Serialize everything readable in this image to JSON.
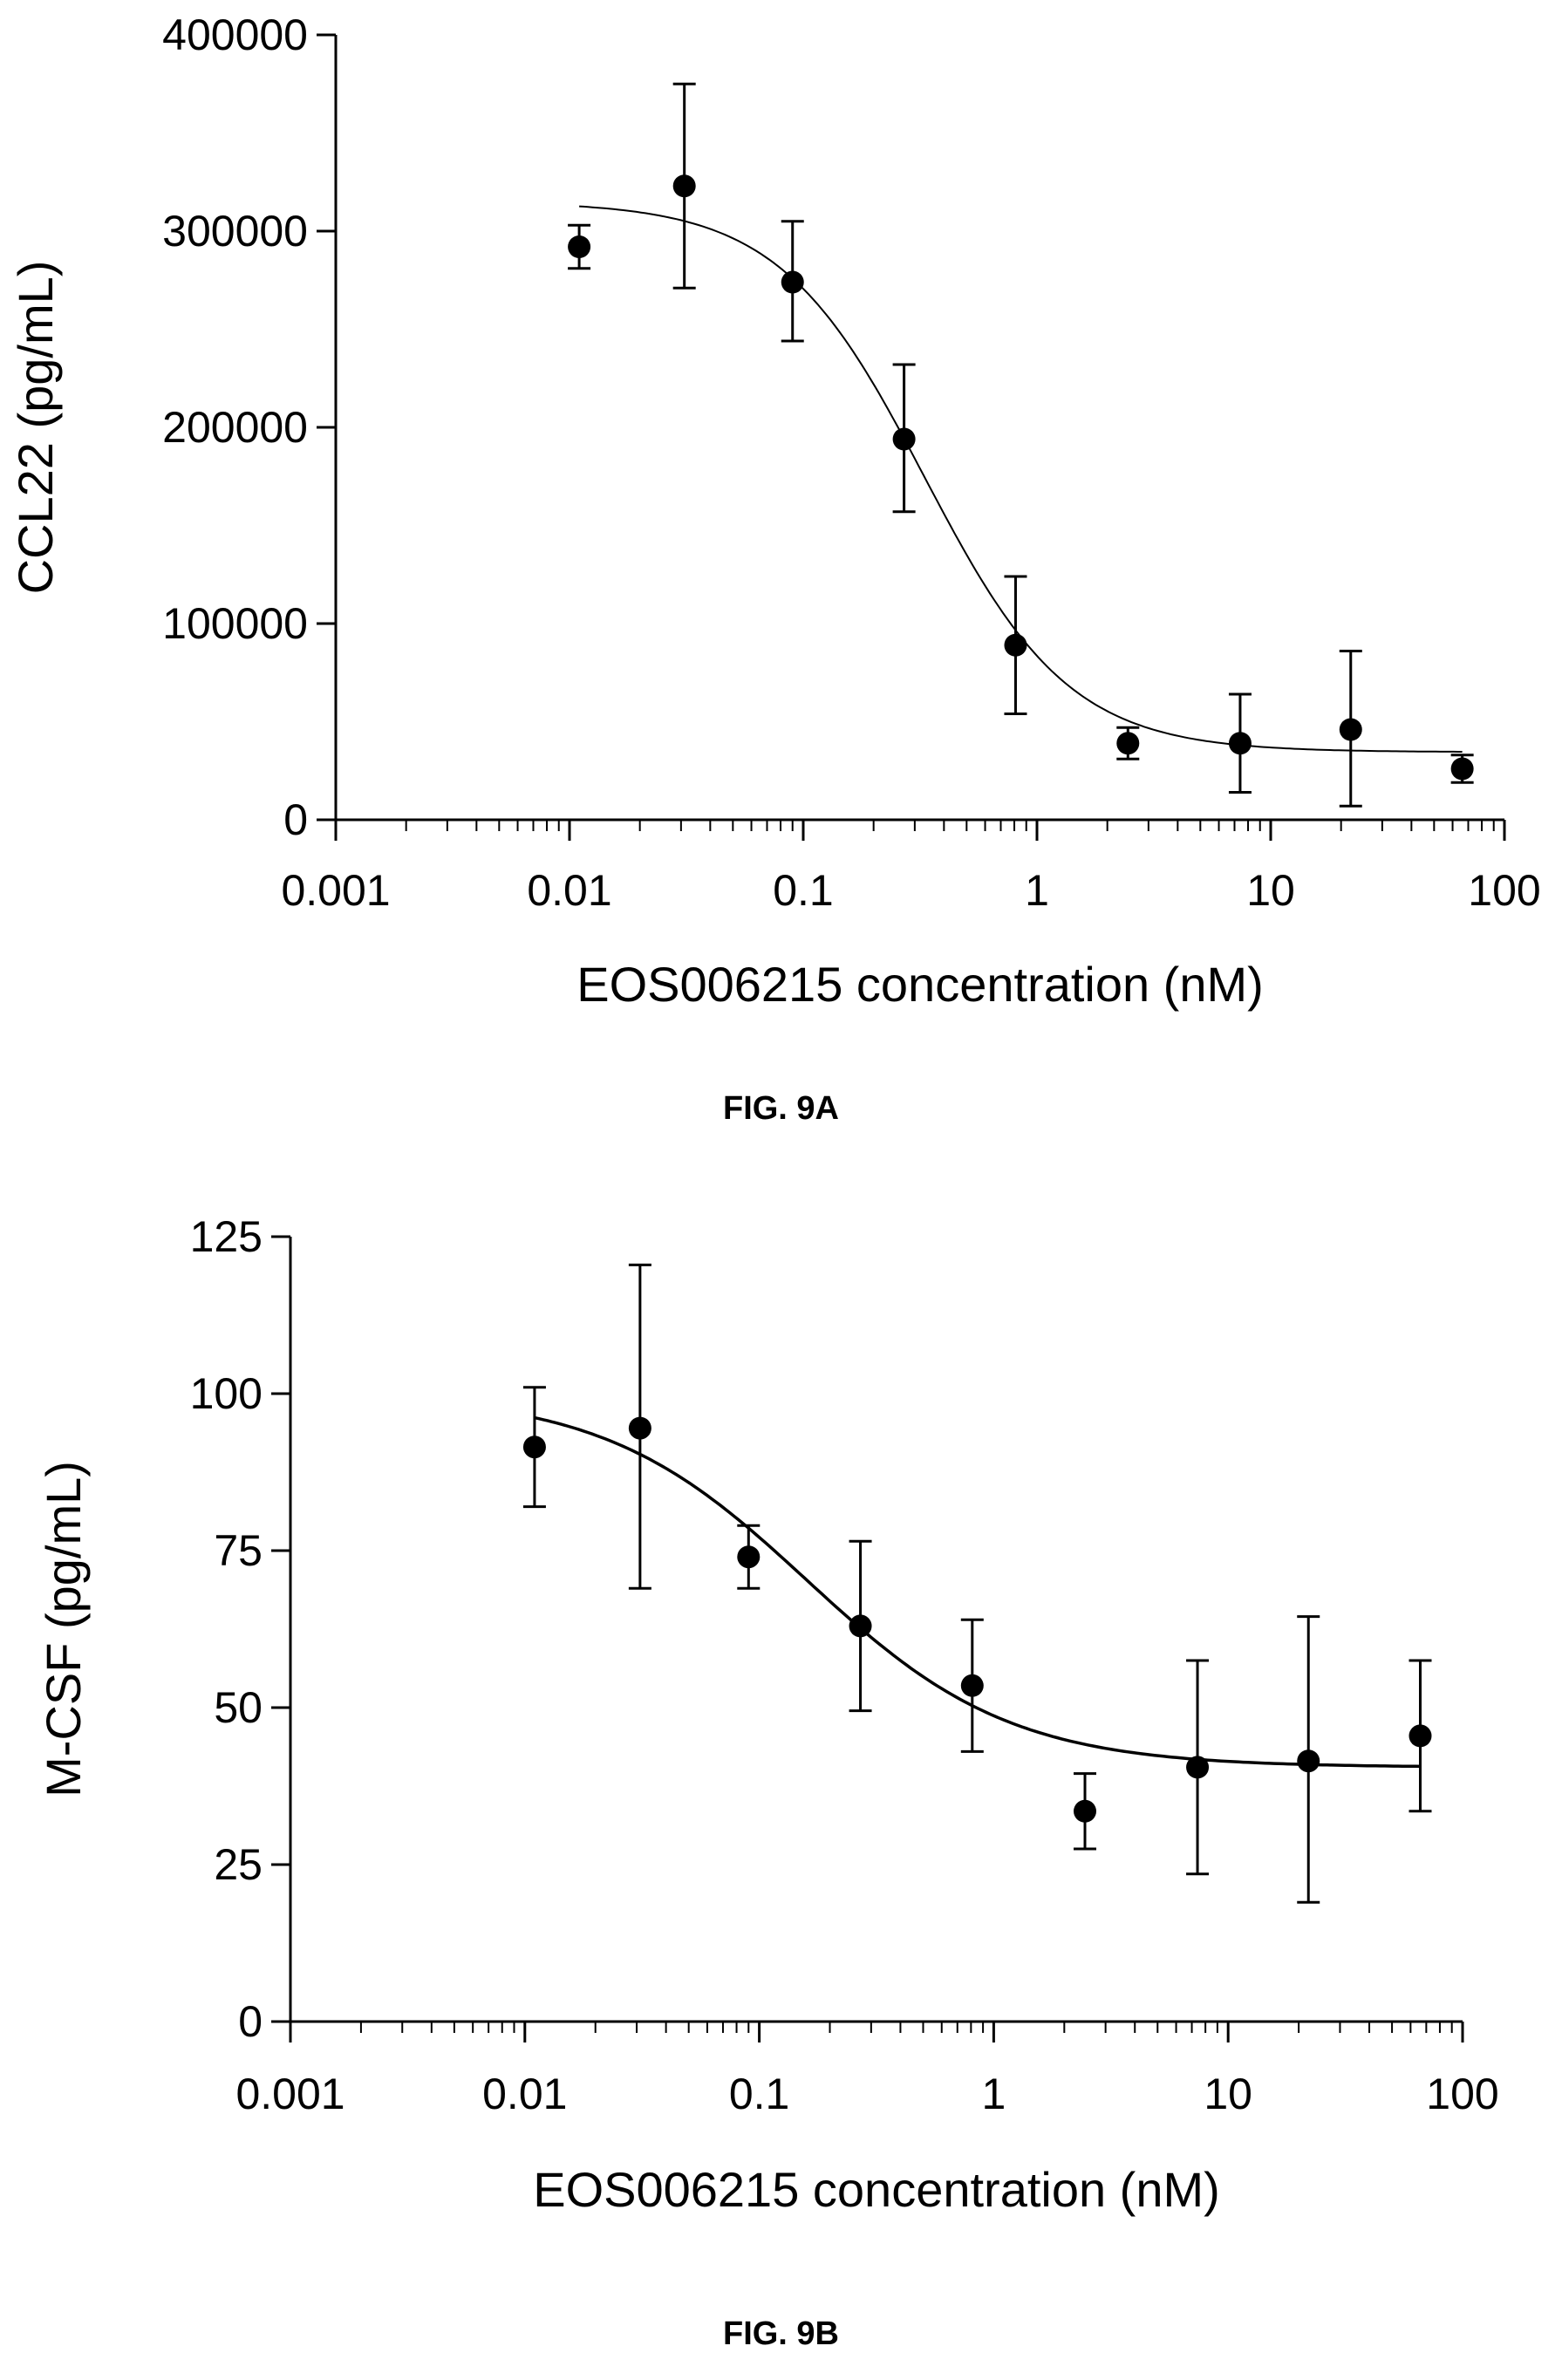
{
  "chart_data": [
    {
      "type": "scatter",
      "caption": "FIG. 9A",
      "xlabel": "EOS006215 concentration (nM)",
      "ylabel": "CCL22 (pg/mL)",
      "xscale": "log",
      "xlim": [
        0.001,
        100
      ],
      "ylim": [
        0,
        400000
      ],
      "xticks": [
        0.001,
        0.01,
        0.1,
        1,
        10,
        100
      ],
      "xtick_labels": [
        "0.001",
        "0.01",
        "0.1",
        "1",
        "10",
        "100"
      ],
      "yticks": [
        0,
        100000,
        200000,
        300000,
        400000
      ],
      "ytick_labels": [
        "0",
        "100000",
        "200000",
        "300000",
        "400000"
      ],
      "grid": false,
      "points": [
        {
          "x": 0.011,
          "y": 292000,
          "err_low": 281000,
          "err_high": 303000
        },
        {
          "x": 0.031,
          "y": 323000,
          "err_low": 271000,
          "err_high": 375000
        },
        {
          "x": 0.09,
          "y": 274000,
          "err_low": 244000,
          "err_high": 305000
        },
        {
          "x": 0.27,
          "y": 194000,
          "err_low": 157000,
          "err_high": 232000
        },
        {
          "x": 0.81,
          "y": 89000,
          "err_low": 54000,
          "err_high": 124000
        },
        {
          "x": 2.45,
          "y": 39000,
          "err_low": 31000,
          "err_high": 47000
        },
        {
          "x": 7.4,
          "y": 39000,
          "err_low": 14000,
          "err_high": 64000
        },
        {
          "x": 22,
          "y": 46000,
          "err_low": 7000,
          "err_high": 86000
        },
        {
          "x": 66,
          "y": 26000,
          "err_low": 19000,
          "err_high": 33000
        }
      ],
      "fit_curve": {
        "top": 315000,
        "bottom": 34500,
        "ic50": 0.33,
        "hill": 1.4,
        "x_range": [
          0.011,
          66
        ]
      }
    },
    {
      "type": "scatter",
      "caption": "FIG. 9B",
      "xlabel": "EOS006215 concentration (nM)",
      "ylabel": "M-CSF (pg/mL)",
      "xscale": "log",
      "xlim": [
        0.001,
        100
      ],
      "ylim": [
        0,
        125
      ],
      "xticks": [
        0.001,
        0.01,
        0.1,
        1,
        10,
        100
      ],
      "xtick_labels": [
        "0.001",
        "0.01",
        "0.1",
        "1",
        "10",
        "100"
      ],
      "yticks": [
        0,
        25,
        50,
        75,
        100,
        125
      ],
      "ytick_labels": [
        "0",
        "25",
        "50",
        "75",
        "100",
        "125"
      ],
      "grid": false,
      "points": [
        {
          "x": 0.011,
          "y": 91.5,
          "err_low": 82,
          "err_high": 101
        },
        {
          "x": 0.031,
          "y": 94.5,
          "err_low": 69,
          "err_high": 120.5
        },
        {
          "x": 0.09,
          "y": 74,
          "err_low": 69,
          "err_high": 79
        },
        {
          "x": 0.27,
          "y": 63,
          "err_low": 49.5,
          "err_high": 76.5
        },
        {
          "x": 0.81,
          "y": 53.5,
          "err_low": 43,
          "err_high": 64
        },
        {
          "x": 2.45,
          "y": 33.5,
          "err_low": 27.5,
          "err_high": 39.5
        },
        {
          "x": 7.4,
          "y": 40.5,
          "err_low": 23.5,
          "err_high": 57.5
        },
        {
          "x": 22,
          "y": 41.5,
          "err_low": 19,
          "err_high": 64.5
        },
        {
          "x": 66,
          "y": 45.5,
          "err_low": 33.5,
          "err_high": 57.5
        }
      ],
      "fit_curve": {
        "top": 100,
        "bottom": 40.5,
        "ic50": 0.16,
        "hill": 1.0,
        "x_range": [
          0.011,
          66
        ]
      }
    }
  ],
  "figure_captions": {
    "a": "FIG. 9A",
    "b": "FIG. 9B"
  }
}
